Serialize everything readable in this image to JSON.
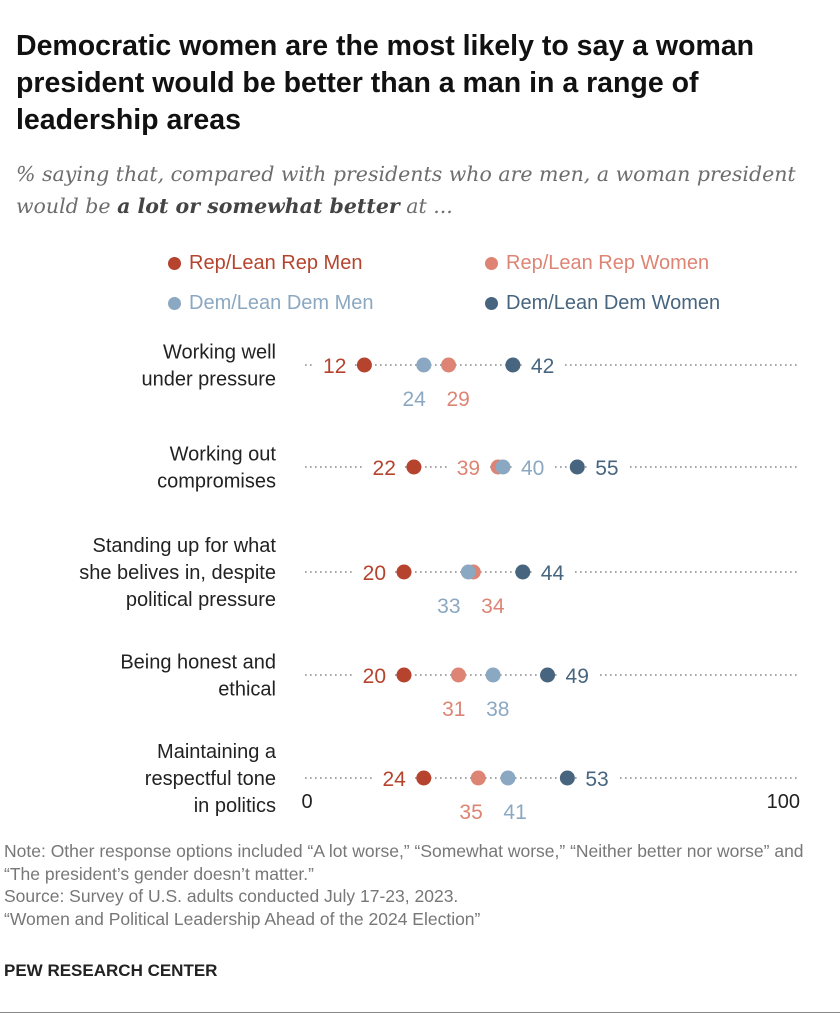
{
  "title": "Democratic women are the most likely to say a woman president would be better than a man in a range of leadership areas",
  "subtitle": {
    "pre": "% saying that, compared with presidents who are men, a woman president would be ",
    "bold": "a lot or somewhat better",
    "post": " at ..."
  },
  "notes": [
    "Note: Other response options included “A lot worse,” “Somewhat worse,” “Neither better nor worse” and “The president’s gender doesn’t matter.”",
    "Source: Survey of U.S. adults conducted July 17-23, 2023.",
    "“Women and Political Leadership Ahead of the 2024 Election”"
  ],
  "brand": "PEW RESEARCH CENTER",
  "chart_data": {
    "type": "dot",
    "xlim": [
      0,
      100
    ],
    "x_tick_labels": [
      "0",
      "100"
    ],
    "legend_placement": "top",
    "series": [
      {
        "name": "Rep/Lean Rep Men",
        "color": "#b5432e",
        "values": [
          12,
          22,
          20,
          20,
          24
        ]
      },
      {
        "name": "Rep/Lean Rep Women",
        "color": "#dd8474",
        "values": [
          29,
          39,
          34,
          31,
          35
        ]
      },
      {
        "name": "Dem/Lean Dem Men",
        "color": "#8ba8c2",
        "values": [
          24,
          40,
          33,
          38,
          41
        ]
      },
      {
        "name": "Dem/Lean Dem Women",
        "color": "#48657f",
        "values": [
          42,
          55,
          44,
          49,
          53
        ]
      }
    ],
    "categories": [
      [
        "Working well",
        "under pressure"
      ],
      [
        "Working out",
        "compromises"
      ],
      [
        "Standing up for what",
        "she belives in, despite",
        "political pressure"
      ],
      [
        "Being honest and",
        "ethical"
      ],
      [
        "Maintaining a",
        "respectful tone",
        "in politics"
      ]
    ]
  }
}
